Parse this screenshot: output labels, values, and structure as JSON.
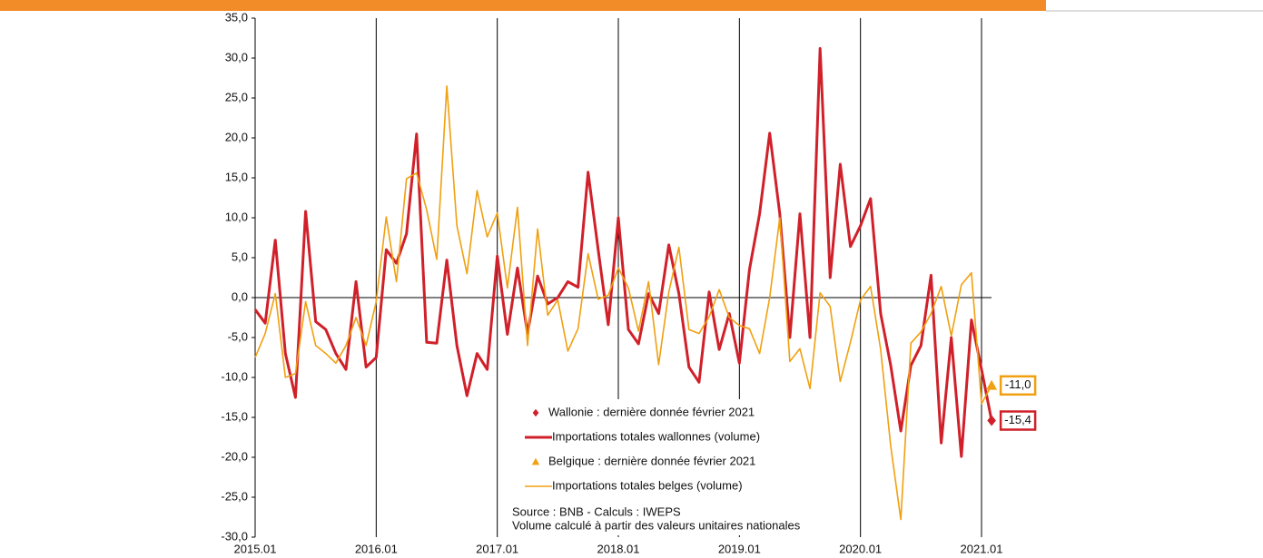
{
  "chart_data": {
    "type": "line",
    "categories": [
      "2015.01",
      null,
      null,
      null,
      null,
      null,
      null,
      null,
      null,
      null,
      null,
      null,
      "2016.01",
      null,
      null,
      null,
      null,
      null,
      null,
      null,
      null,
      null,
      null,
      null,
      "2017.01",
      null,
      null,
      null,
      null,
      null,
      null,
      null,
      null,
      null,
      null,
      null,
      "2018.01",
      null,
      null,
      null,
      null,
      null,
      null,
      null,
      null,
      null,
      null,
      null,
      "2019.01",
      null,
      null,
      null,
      null,
      null,
      null,
      null,
      null,
      null,
      null,
      null,
      "2020.01",
      null,
      null,
      null,
      null,
      null,
      null,
      null,
      null,
      null,
      null,
      null,
      "2021.01",
      null
    ],
    "series": [
      {
        "name": "Wallonie : dernière donnée février 2021",
        "marker": "diamond",
        "color": "#d0202a",
        "values": [
          null,
          null,
          null,
          null,
          null,
          null,
          null,
          null,
          null,
          null,
          null,
          null,
          null,
          null,
          null,
          null,
          null,
          null,
          null,
          null,
          null,
          null,
          null,
          null,
          null,
          null,
          null,
          null,
          null,
          null,
          null,
          null,
          null,
          null,
          null,
          null,
          null,
          null,
          null,
          null,
          null,
          null,
          null,
          null,
          null,
          null,
          null,
          null,
          null,
          null,
          null,
          null,
          null,
          null,
          null,
          null,
          null,
          null,
          null,
          null,
          null,
          null,
          null,
          null,
          null,
          null,
          null,
          null,
          null,
          null,
          null,
          null,
          null,
          -15.4
        ],
        "value_labels": [
          null,
          null,
          null,
          null,
          null,
          null,
          null,
          null,
          null,
          null,
          null,
          null,
          null,
          null,
          null,
          null,
          null,
          null,
          null,
          null,
          null,
          null,
          null,
          null,
          null,
          null,
          null,
          null,
          null,
          null,
          null,
          null,
          null,
          null,
          null,
          null,
          null,
          null,
          null,
          null,
          null,
          null,
          null,
          null,
          null,
          null,
          null,
          null,
          null,
          null,
          null,
          null,
          null,
          null,
          null,
          null,
          null,
          null,
          null,
          null,
          null,
          null,
          null,
          null,
          null,
          null,
          null,
          null,
          null,
          null,
          null,
          null,
          null,
          "-15,4"
        ]
      },
      {
        "name": "Importations totales wallonnes (volume)",
        "color": "#d0202a",
        "width": 3,
        "values": [
          -1.5,
          -3.2,
          7.2,
          -7,
          -12.5,
          10.8,
          -3,
          -4,
          -7,
          -9,
          2,
          -8.7,
          -7.5,
          6,
          4.3,
          8,
          20.5,
          -5.6,
          -5.7,
          4.7,
          -6,
          -12.3,
          -7,
          -9,
          5.2,
          -4.6,
          3.7,
          -4.5,
          2.7,
          -0.8,
          0,
          2,
          1.3,
          15.7,
          6,
          -3.4,
          10,
          -4,
          -5.8,
          0.5,
          -2,
          6.6,
          0.5,
          -8.7,
          -10.6,
          0.7,
          -6.5,
          -2,
          -8.2,
          3.5,
          10.5,
          20.6,
          10.5,
          -5,
          10.5,
          -5,
          31.2,
          2.5,
          16.7,
          6.4,
          9,
          12.4,
          -2,
          -8.5,
          -16.7,
          -8.5,
          -6,
          2.8,
          -18.2,
          -5,
          -19.9,
          -2.8,
          -9,
          -15.4
        ]
      },
      {
        "name": "Belgique : dernière donnée février 2021",
        "marker": "triangle",
        "color": "#f0a010",
        "values": [
          null,
          null,
          null,
          null,
          null,
          null,
          null,
          null,
          null,
          null,
          null,
          null,
          null,
          null,
          null,
          null,
          null,
          null,
          null,
          null,
          null,
          null,
          null,
          null,
          null,
          null,
          null,
          null,
          null,
          null,
          null,
          null,
          null,
          null,
          null,
          null,
          null,
          null,
          null,
          null,
          null,
          null,
          null,
          null,
          null,
          null,
          null,
          null,
          null,
          null,
          null,
          null,
          null,
          null,
          null,
          null,
          null,
          null,
          null,
          null,
          null,
          null,
          null,
          null,
          null,
          null,
          null,
          null,
          null,
          null,
          null,
          null,
          null,
          -11.0
        ],
        "value_labels": [
          null,
          null,
          null,
          null,
          null,
          null,
          null,
          null,
          null,
          null,
          null,
          null,
          null,
          null,
          null,
          null,
          null,
          null,
          null,
          null,
          null,
          null,
          null,
          null,
          null,
          null,
          null,
          null,
          null,
          null,
          null,
          null,
          null,
          null,
          null,
          null,
          null,
          null,
          null,
          null,
          null,
          null,
          null,
          null,
          null,
          null,
          null,
          null,
          null,
          null,
          null,
          null,
          null,
          null,
          null,
          null,
          null,
          null,
          null,
          null,
          null,
          null,
          null,
          null,
          null,
          null,
          null,
          null,
          null,
          null,
          null,
          null,
          null,
          "-11,0"
        ]
      },
      {
        "name": "Importations totales belges (volume)",
        "color": "#f0a010",
        "width": 1.6,
        "values": [
          -7.5,
          -4.5,
          0.5,
          -10,
          -9.5,
          -0.5,
          -6,
          -7,
          -8.2,
          -6,
          -2.5,
          -6,
          -0.5,
          10.1,
          2,
          14.9,
          15.6,
          11,
          4.8,
          26.5,
          9,
          3,
          13.4,
          7.6,
          10.6,
          1.2,
          11.3,
          -6,
          8.6,
          -2.2,
          -0.3,
          -6.7,
          -3.9,
          5.5,
          -0.2,
          0.3,
          3.7,
          1.2,
          -4.2,
          2,
          -8.4,
          0.7,
          6.3,
          -4,
          -4.5,
          -2.4,
          1,
          -2.5,
          -3.5,
          -3.9,
          -7,
          0,
          10,
          -8,
          -6.4,
          -11.4,
          0.6,
          -1.1,
          -10.5,
          -5.6,
          -0.3,
          1.4,
          -6.5,
          -18.6,
          -27.8,
          -5.7,
          -4.3,
          -2,
          1.4,
          -4.8,
          1.6,
          3.1,
          -13.3,
          -11.0
        ]
      }
    ],
    "ylim": [
      -30,
      35
    ],
    "yticks": [
      {
        "value": -30,
        "label": "-30,0"
      },
      {
        "value": -25,
        "label": "-25,0"
      },
      {
        "value": -20,
        "label": "-20,0"
      },
      {
        "value": -15,
        "label": "-15,0"
      },
      {
        "value": -10,
        "label": "-10,0"
      },
      {
        "value": -5,
        "label": "-5,0"
      },
      {
        "value": 0,
        "label": "0,0"
      },
      {
        "value": 5,
        "label": "5,0"
      },
      {
        "value": 10,
        "label": "10,0"
      },
      {
        "value": 15,
        "label": "15,0"
      },
      {
        "value": 20,
        "label": "20,0"
      },
      {
        "value": 25,
        "label": "25,0"
      },
      {
        "value": 30,
        "label": "30,0"
      },
      {
        "value": 35,
        "label": "35,0"
      }
    ],
    "source": "Source : BNB - Calculs : IWEPS",
    "note": "Volume calculé à partir des valeurs unitaires nationales"
  }
}
